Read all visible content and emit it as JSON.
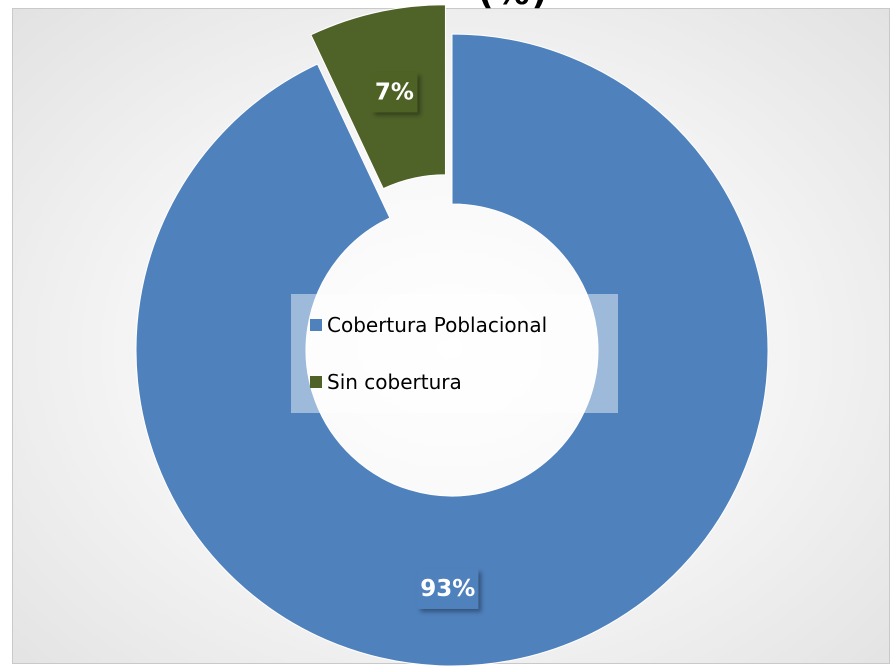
{
  "title_fragment": "(%)",
  "chart_data": {
    "type": "pie",
    "variant": "doughnut",
    "slices": [
      {
        "label": "Cobertura Poblacional",
        "value": 93,
        "data_label": "93%",
        "color": "#4f81bd",
        "exploded": false
      },
      {
        "label": "Sin cobertura",
        "value": 7,
        "data_label": "7%",
        "color": "#4f6228",
        "exploded": true
      }
    ],
    "legend": {
      "placement": "center",
      "entries": [
        {
          "label": "Cobertura Poblacional",
          "color": "#4f81bd"
        },
        {
          "label": "Sin cobertura",
          "color": "#4f6228"
        }
      ]
    }
  },
  "colors": {
    "label_box_blue": "#4f81bd",
    "label_box_green": "#4f6228"
  }
}
